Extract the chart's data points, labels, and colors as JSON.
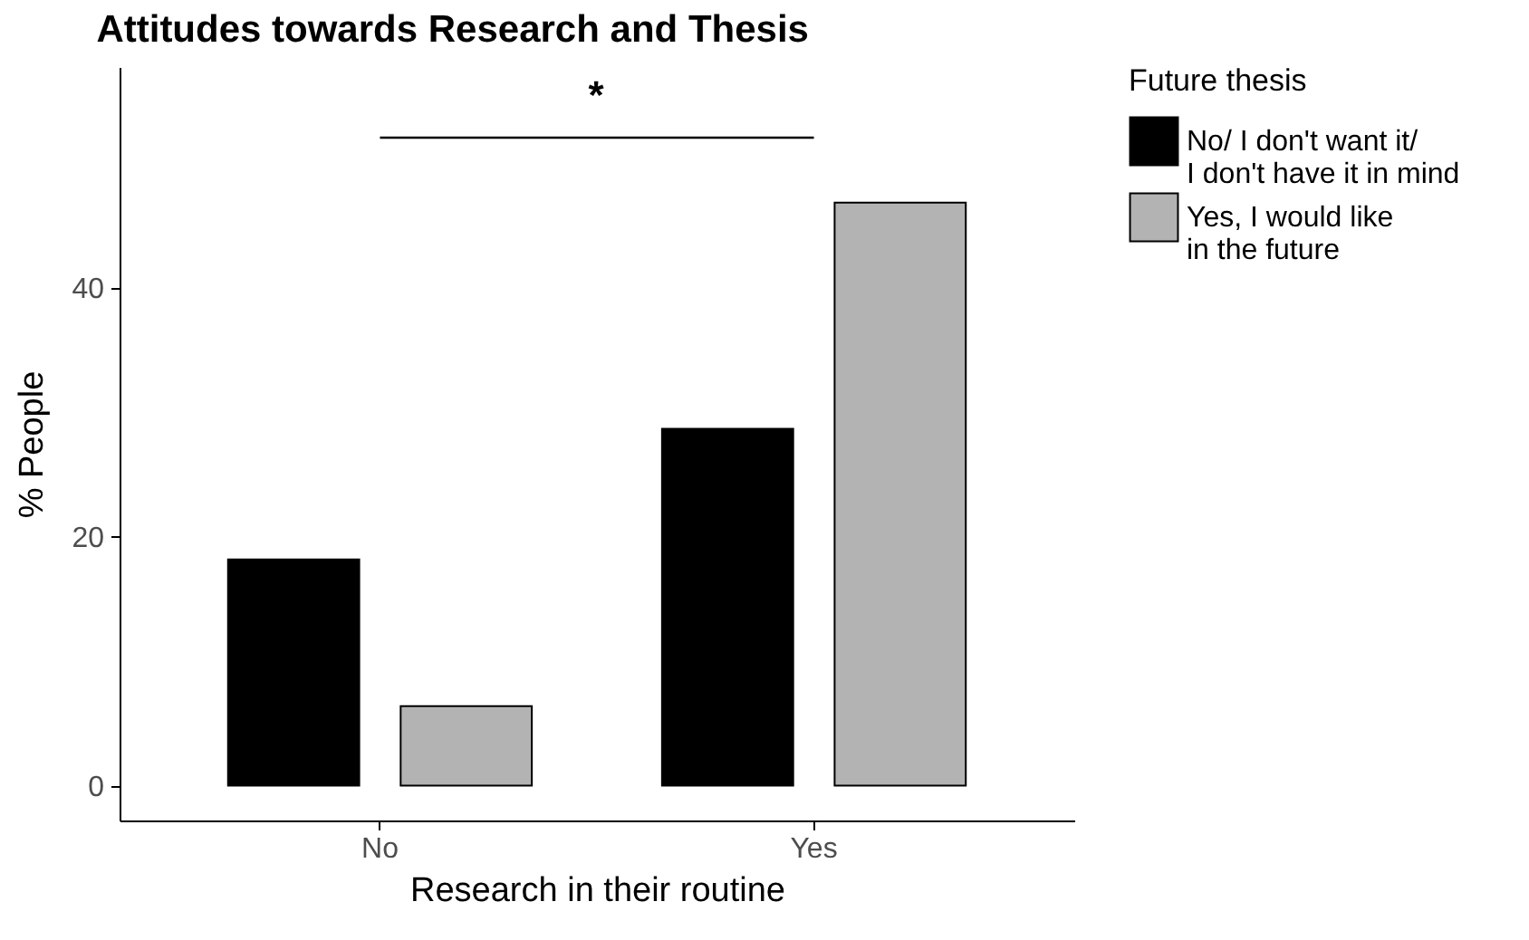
{
  "chart_data": {
    "type": "bar",
    "title": "Attitudes towards Research and Thesis",
    "xlabel": "Research in their routine",
    "ylabel": "% People",
    "legend_title": "Future thesis",
    "categories": [
      "No",
      "Yes"
    ],
    "series": [
      {
        "name": "No/ I don't want it/\nI don't have it in mind",
        "color": "#000000",
        "values": [
          18.2,
          28.7
        ]
      },
      {
        "name": "Yes, I would like\nin the future",
        "color": "#b3b3b3",
        "values": [
          6.4,
          46.9
        ]
      }
    ],
    "ylim": [
      -2.8,
      57.8
    ],
    "yticks": [
      0,
      20,
      40
    ],
    "grid": false,
    "legend": "right",
    "annotations": [
      "*"
    ]
  }
}
